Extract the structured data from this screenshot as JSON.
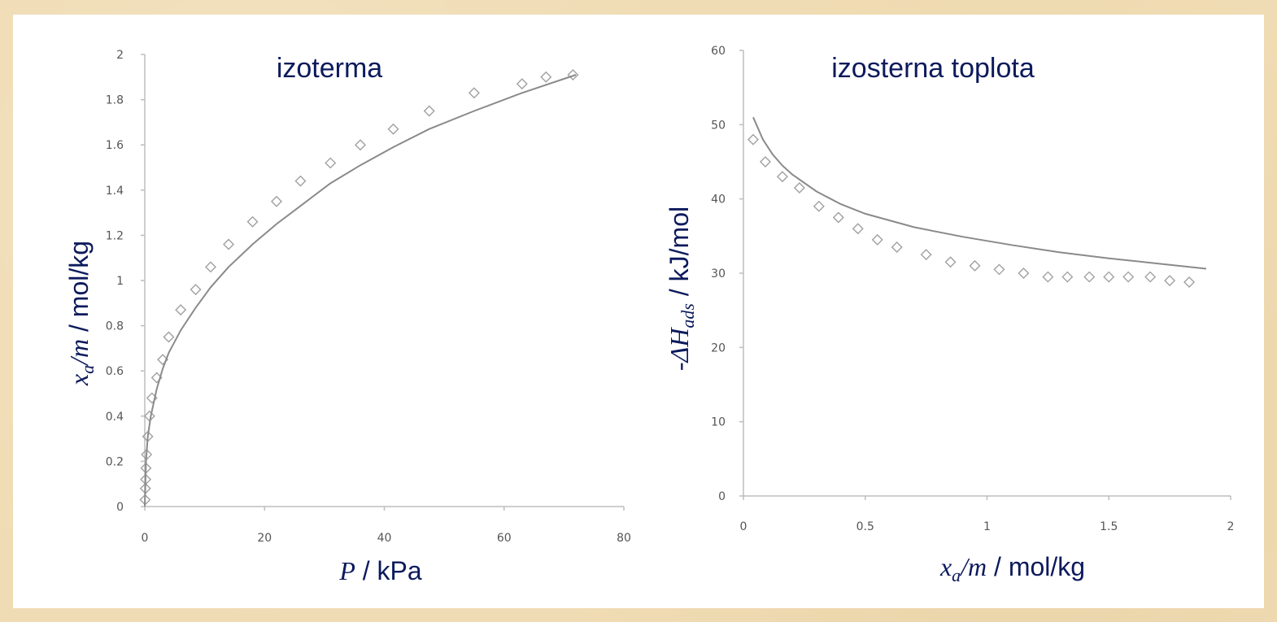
{
  "chart_data": [
    {
      "type": "scatter",
      "title": "izoterma",
      "xlabel": {
        "var": "P",
        "unit": " / kPa"
      },
      "ylabel": {
        "var1": "x",
        "sub": "a",
        "var2": "/m",
        "unit": " / mol/kg"
      },
      "xlim": [
        0,
        80
      ],
      "ylim": [
        0,
        2
      ],
      "xticks": [
        "0",
        "20",
        "40",
        "60",
        "80"
      ],
      "yticks": [
        "0",
        "0.2",
        "0.4",
        "0.6",
        "0.8",
        "1",
        "1.2",
        "1.4",
        "1.6",
        "1.8",
        "2"
      ],
      "grid": false,
      "series": [
        {
          "kind": "markers",
          "x": [
            0.05,
            0.1,
            0.15,
            0.2,
            0.3,
            0.5,
            0.8,
            1.2,
            2.0,
            3.0,
            4.0,
            6.0,
            8.5,
            11,
            14,
            18,
            22,
            26,
            31,
            36,
            41.5,
            47.5,
            55,
            63,
            67,
            71.5
          ],
          "y": [
            0.03,
            0.08,
            0.12,
            0.17,
            0.23,
            0.31,
            0.4,
            0.48,
            0.57,
            0.65,
            0.75,
            0.87,
            0.96,
            1.06,
            1.16,
            1.26,
            1.35,
            1.44,
            1.52,
            1.6,
            1.67,
            1.75,
            1.83,
            1.87,
            1.9,
            1.91
          ]
        },
        {
          "kind": "line",
          "x": [
            0,
            0.2,
            0.5,
            1,
            2,
            3,
            4,
            6,
            8.5,
            11,
            14,
            18,
            22,
            26,
            31,
            36,
            41.5,
            47.5,
            55,
            63,
            72
          ],
          "y": [
            0,
            0.2,
            0.31,
            0.4,
            0.52,
            0.61,
            0.68,
            0.78,
            0.88,
            0.97,
            1.06,
            1.16,
            1.25,
            1.33,
            1.43,
            1.51,
            1.59,
            1.67,
            1.75,
            1.83,
            1.91
          ]
        }
      ]
    },
    {
      "type": "scatter",
      "title": "izosterna toplota",
      "xlabel": {
        "var1": "x",
        "sub": "a",
        "var2": "/m",
        "unit": " / mol/kg"
      },
      "ylabel": {
        "prefix": "-ΔH",
        "sub": "ads",
        "unit": " / kJ/mol"
      },
      "xlim": [
        0,
        2
      ],
      "ylim": [
        0,
        60
      ],
      "xticks": [
        "0",
        "0.5",
        "1",
        "1.5",
        "2"
      ],
      "yticks": [
        "0",
        "10",
        "20",
        "30",
        "40",
        "50",
        "60"
      ],
      "grid": false,
      "series": [
        {
          "kind": "markers",
          "x": [
            0.04,
            0.09,
            0.16,
            0.23,
            0.31,
            0.39,
            0.47,
            0.55,
            0.63,
            0.75,
            0.85,
            0.95,
            1.05,
            1.15,
            1.25,
            1.33,
            1.42,
            1.5,
            1.58,
            1.67,
            1.75,
            1.83
          ],
          "y": [
            48,
            45,
            43,
            41.5,
            39,
            37.5,
            36,
            34.5,
            33.5,
            32.5,
            31.5,
            31,
            30.5,
            30,
            29.5,
            29.5,
            29.5,
            29.5,
            29.5,
            29.5,
            29,
            28.8
          ]
        },
        {
          "kind": "line",
          "x": [
            0.04,
            0.08,
            0.12,
            0.16,
            0.2,
            0.3,
            0.4,
            0.5,
            0.7,
            0.9,
            1.1,
            1.3,
            1.5,
            1.7,
            1.9
          ],
          "y": [
            51,
            48,
            46,
            44.5,
            43.3,
            41,
            39.3,
            38,
            36.2,
            34.9,
            33.8,
            32.8,
            32,
            31.3,
            30.6
          ]
        }
      ]
    }
  ]
}
